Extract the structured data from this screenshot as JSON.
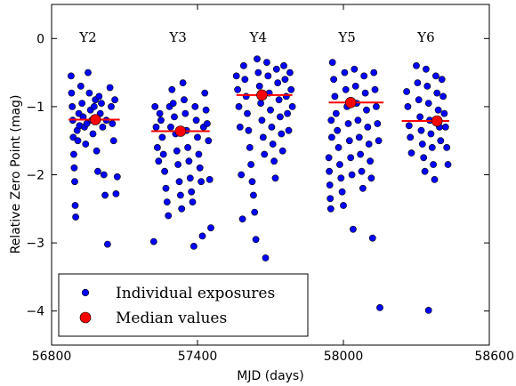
{
  "chart_data": {
    "type": "scatter",
    "xlabel": "MJD (days)",
    "ylabel": "Relative Zero Point (mag)",
    "xlim": [
      56800,
      58600
    ],
    "ylim": [
      -4.5,
      0.5
    ],
    "xticks": [
      56800,
      57400,
      58000,
      58600
    ],
    "xtick_labels": [
      "56800",
      "57400",
      "58000",
      "58600"
    ],
    "yticks": [
      0,
      -1,
      -2,
      -3,
      -4
    ],
    "ytick_labels": [
      "0",
      "−1",
      "−2",
      "−3",
      "−4"
    ],
    "grid": false,
    "legend_position": "bottom-left",
    "colors": {
      "individual": "#0000ff",
      "median_marker": "#ff0000",
      "median_line": "#ff0000"
    },
    "season_labels": [
      {
        "text": "Y2",
        "x": 56950
      },
      {
        "text": "Y3",
        "x": 57320
      },
      {
        "text": "Y4",
        "x": 57650
      },
      {
        "text": "Y5",
        "x": 58015
      },
      {
        "text": "Y6",
        "x": 58340
      }
    ],
    "series": [
      {
        "name": "Individual exposures",
        "points": [
          [
            56880,
            -0.55
          ],
          [
            56882,
            -0.8
          ],
          [
            56885,
            -1.0
          ],
          [
            56887,
            -1.2
          ],
          [
            56889,
            -1.45
          ],
          [
            56891,
            -1.7
          ],
          [
            56893,
            -1.9
          ],
          [
            56895,
            -2.1
          ],
          [
            56897,
            -2.45
          ],
          [
            56899,
            -2.62
          ],
          [
            56905,
            -1.35
          ],
          [
            56908,
            -1.5
          ],
          [
            56912,
            -1.1
          ],
          [
            56915,
            -1.28
          ],
          [
            56920,
            -0.7
          ],
          [
            56925,
            -0.95
          ],
          [
            56930,
            -1.15
          ],
          [
            56935,
            -1.3
          ],
          [
            56940,
            -1.55
          ],
          [
            56945,
            -1.25
          ],
          [
            56950,
            -0.5
          ],
          [
            56955,
            -0.8
          ],
          [
            56960,
            -1.05
          ],
          [
            56965,
            -1.2
          ],
          [
            56970,
            -1.4
          ],
          [
            56975,
            -1.0
          ],
          [
            56980,
            -0.9
          ],
          [
            56985,
            -1.65
          ],
          [
            56990,
            -1.95
          ],
          [
            56995,
            -0.85
          ],
          [
            57000,
            -1.1
          ],
          [
            57005,
            -0.95
          ],
          [
            57010,
            -1.3
          ],
          [
            57015,
            -2.0
          ],
          [
            57020,
            -2.3
          ],
          [
            57025,
            -1.2
          ],
          [
            57030,
            -3.02
          ],
          [
            57040,
            -0.72
          ],
          [
            57045,
            -1.0
          ],
          [
            57050,
            -1.25
          ],
          [
            57055,
            -1.5
          ],
          [
            57060,
            -0.9
          ],
          [
            57065,
            -2.28
          ],
          [
            57070,
            -2.03
          ],
          [
            57220,
            -2.98
          ],
          [
            57225,
            -1.0
          ],
          [
            57230,
            -1.3
          ],
          [
            57235,
            -1.6
          ],
          [
            57240,
            -1.8
          ],
          [
            57245,
            -1.1
          ],
          [
            57250,
            -1.2
          ],
          [
            57255,
            -1.45
          ],
          [
            57260,
            -1.7
          ],
          [
            57265,
            -1.95
          ],
          [
            57270,
            -2.2
          ],
          [
            57275,
            -2.4
          ],
          [
            57280,
            -2.6
          ],
          [
            57285,
            -1.0
          ],
          [
            57290,
            -1.3
          ],
          [
            57295,
            -0.75
          ],
          [
            57300,
            -0.95
          ],
          [
            57305,
            -1.15
          ],
          [
            57310,
            -1.4
          ],
          [
            57315,
            -1.65
          ],
          [
            57320,
            -1.85
          ],
          [
            57325,
            -2.1
          ],
          [
            57330,
            -2.3
          ],
          [
            57335,
            -2.5
          ],
          [
            57340,
            -0.65
          ],
          [
            57345,
            -0.9
          ],
          [
            57350,
            -1.1
          ],
          [
            57355,
            -1.35
          ],
          [
            57360,
            -1.6
          ],
          [
            57365,
            -1.8
          ],
          [
            57370,
            -2.05
          ],
          [
            57375,
            -2.25
          ],
          [
            57380,
            -2.4
          ],
          [
            57385,
            -3.05
          ],
          [
            57390,
            -1.0
          ],
          [
            57395,
            -1.2
          ],
          [
            57400,
            -1.45
          ],
          [
            57405,
            -1.7
          ],
          [
            57410,
            -1.9
          ],
          [
            57415,
            -2.1
          ],
          [
            57420,
            -2.9
          ],
          [
            57425,
            -1.3
          ],
          [
            57430,
            -0.8
          ],
          [
            57435,
            -1.05
          ],
          [
            57440,
            -1.25
          ],
          [
            57445,
            -1.5
          ],
          [
            57450,
            -2.07
          ],
          [
            57455,
            -2.78
          ],
          [
            57560,
            -0.55
          ],
          [
            57565,
            -0.75
          ],
          [
            57570,
            -1.0
          ],
          [
            57575,
            -1.3
          ],
          [
            57580,
            -2.0
          ],
          [
            57585,
            -2.65
          ],
          [
            57590,
            -0.4
          ],
          [
            57595,
            -0.6
          ],
          [
            57600,
            -0.85
          ],
          [
            57605,
            -1.1
          ],
          [
            57610,
            -1.35
          ],
          [
            57615,
            -1.6
          ],
          [
            57620,
            -1.85
          ],
          [
            57625,
            -2.1
          ],
          [
            57630,
            -2.3
          ],
          [
            57635,
            -2.55
          ],
          [
            57640,
            -2.95
          ],
          [
            57645,
            -0.3
          ],
          [
            57650,
            -0.5
          ],
          [
            57655,
            -0.7
          ],
          [
            57660,
            -0.95
          ],
          [
            57665,
            -1.2
          ],
          [
            57670,
            -1.45
          ],
          [
            57675,
            -1.7
          ],
          [
            57680,
            -3.22
          ],
          [
            57685,
            -0.35
          ],
          [
            57690,
            -0.55
          ],
          [
            57695,
            -0.8
          ],
          [
            57700,
            -1.05
          ],
          [
            57705,
            -1.3
          ],
          [
            57710,
            -1.55
          ],
          [
            57715,
            -1.8
          ],
          [
            57720,
            -2.05
          ],
          [
            57725,
            -0.45
          ],
          [
            57730,
            -0.65
          ],
          [
            57735,
            -0.9
          ],
          [
            57740,
            -1.15
          ],
          [
            57745,
            -1.4
          ],
          [
            57750,
            -1.65
          ],
          [
            57755,
            -0.4
          ],
          [
            57760,
            -0.6
          ],
          [
            57765,
            -0.85
          ],
          [
            57770,
            -1.1
          ],
          [
            57775,
            -1.35
          ],
          [
            57780,
            -0.5
          ],
          [
            57785,
            -0.75
          ],
          [
            57790,
            -1.0
          ],
          [
            57940,
            -1.75
          ],
          [
            57942,
            -1.95
          ],
          [
            57944,
            -2.15
          ],
          [
            57946,
            -2.35
          ],
          [
            57948,
            -2.5
          ],
          [
            57950,
            -1.2
          ],
          [
            57952,
            -1.45
          ],
          [
            57955,
            -0.35
          ],
          [
            57960,
            -0.6
          ],
          [
            57965,
            -0.85
          ],
          [
            57970,
            -1.1
          ],
          [
            57975,
            -1.35
          ],
          [
            57980,
            -1.6
          ],
          [
            57985,
            -1.85
          ],
          [
            57990,
            -2.05
          ],
          [
            57995,
            -2.25
          ],
          [
            58000,
            -2.45
          ],
          [
            58005,
            -0.5
          ],
          [
            58010,
            -0.75
          ],
          [
            58015,
            -1.0
          ],
          [
            58020,
            -1.25
          ],
          [
            58025,
            -1.5
          ],
          [
            58030,
            -1.75
          ],
          [
            58035,
            -2.0
          ],
          [
            58040,
            -2.8
          ],
          [
            58045,
            -0.45
          ],
          [
            58050,
            -0.7
          ],
          [
            58055,
            -0.95
          ],
          [
            58060,
            -1.2
          ],
          [
            58065,
            -1.45
          ],
          [
            58070,
            -1.7
          ],
          [
            58075,
            -1.95
          ],
          [
            58080,
            -2.2
          ],
          [
            58085,
            -0.55
          ],
          [
            58090,
            -0.8
          ],
          [
            58095,
            -1.05
          ],
          [
            58100,
            -1.3
          ],
          [
            58105,
            -1.55
          ],
          [
            58110,
            -1.8
          ],
          [
            58115,
            -2.05
          ],
          [
            58120,
            -2.93
          ],
          [
            58125,
            -0.5
          ],
          [
            58130,
            -0.75
          ],
          [
            58135,
            -1.0
          ],
          [
            58140,
            -1.25
          ],
          [
            58145,
            -1.5
          ],
          [
            58150,
            -3.95
          ],
          [
            58260,
            -0.78
          ],
          [
            58265,
            -1.0
          ],
          [
            58270,
            -1.28
          ],
          [
            58275,
            -1.45
          ],
          [
            58280,
            -1.68
          ],
          [
            58300,
            -0.4
          ],
          [
            58305,
            -0.65
          ],
          [
            58310,
            -0.9
          ],
          [
            58315,
            -1.15
          ],
          [
            58320,
            -1.35
          ],
          [
            58325,
            -1.55
          ],
          [
            58330,
            -1.75
          ],
          [
            58335,
            -1.95
          ],
          [
            58340,
            -0.45
          ],
          [
            58345,
            -0.7
          ],
          [
            58350,
            -0.95
          ],
          [
            58355,
            -1.2
          ],
          [
            58360,
            -1.4
          ],
          [
            58365,
            -1.6
          ],
          [
            58370,
            -1.85
          ],
          [
            58375,
            -2.07
          ],
          [
            58380,
            -0.55
          ],
          [
            58385,
            -0.8
          ],
          [
            58390,
            -1.05
          ],
          [
            58395,
            -1.3
          ],
          [
            58400,
            -1.5
          ],
          [
            58405,
            -0.6
          ],
          [
            58410,
            -0.85
          ],
          [
            58415,
            -1.1
          ],
          [
            58420,
            -1.3
          ],
          [
            58425,
            -1.6
          ],
          [
            58430,
            -1.85
          ],
          [
            58350,
            -3.99
          ]
        ]
      },
      {
        "name": "Median values",
        "points": [
          [
            56980,
            -1.19
          ],
          [
            57330,
            -1.36
          ],
          [
            57665,
            -0.83
          ],
          [
            58030,
            -0.94
          ],
          [
            58385,
            -1.21
          ]
        ],
        "hline_x_ranges": [
          [
            56870,
            57080
          ],
          [
            57210,
            57450
          ],
          [
            57560,
            57790
          ],
          [
            57940,
            58165
          ],
          [
            58240,
            58435
          ]
        ]
      }
    ]
  }
}
